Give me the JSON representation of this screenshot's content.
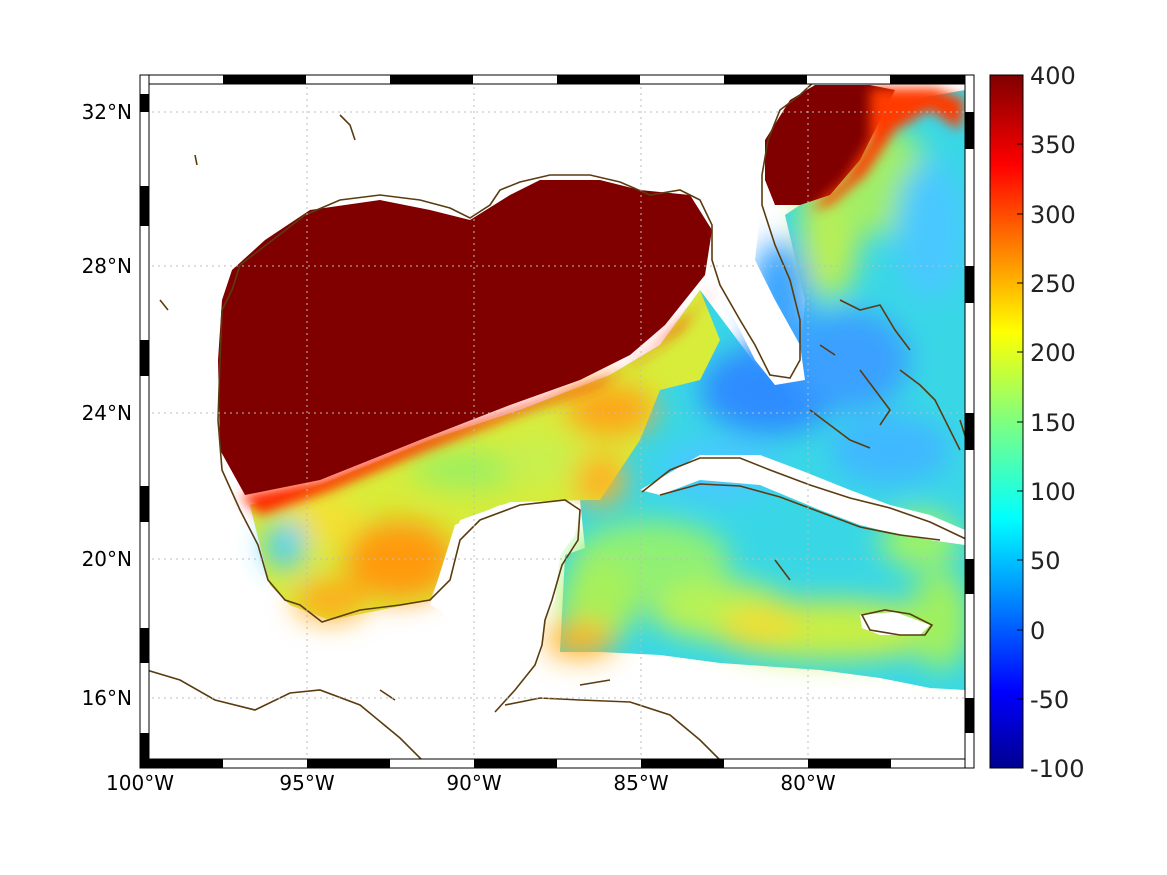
{
  "map": {
    "region": "Gulf of Mexico and western Caribbean",
    "lon_ticks": [
      "100°W",
      "95°W",
      "90°W",
      "85°W",
      "80°W"
    ],
    "lat_ticks": [
      "32°N",
      "28°N",
      "24°N",
      "20°N",
      "16°N"
    ],
    "grid": true,
    "coastline_color": "#5a3c10",
    "land_color": "#ffffff"
  },
  "colorbar": {
    "colormap": "jet",
    "min": -100,
    "max": 400,
    "ticks": [
      "400",
      "350",
      "300",
      "250",
      "200",
      "150",
      "100",
      "50",
      "0",
      "-50",
      "-100"
    ]
  }
}
